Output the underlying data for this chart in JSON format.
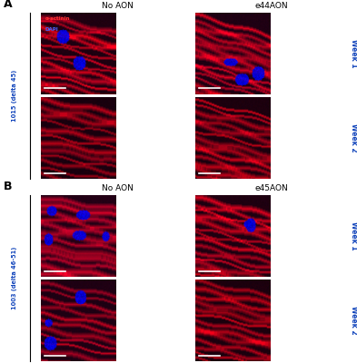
{
  "title_A": "A",
  "title_B": "B",
  "col_headers_A": [
    "No AON",
    "e44AON"
  ],
  "col_headers_B": [
    "No AON",
    "e45AON"
  ],
  "row_headers_A": [
    "Week 1",
    "Week 2"
  ],
  "row_headers_B": [
    "Week 1",
    "Week 2"
  ],
  "side_label_A": "1015 (delta 45)",
  "side_label_B": "1003 (delta 46-51)",
  "legend_label_red": "α-actinin",
  "legend_label_blue": "DAPI",
  "legend_color_red": "#ff3333",
  "legend_color_blue": "#4466ff",
  "figure_bg": "#ffffff"
}
